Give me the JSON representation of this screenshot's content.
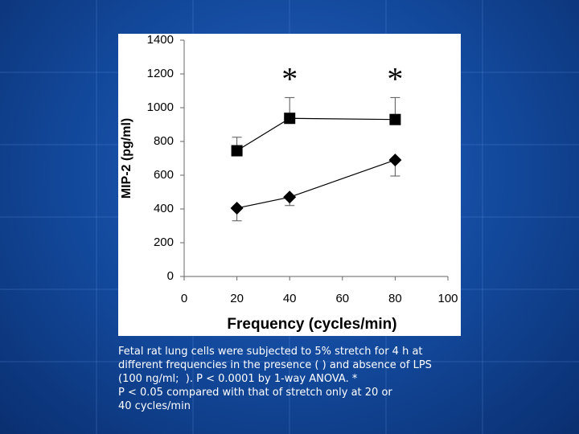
{
  "chart_data": {
    "type": "line",
    "xlabel": "Frequency (cycles/min)",
    "ylabel": "MIP-2 (pg/ml)",
    "x": [
      20,
      40,
      80
    ],
    "series": [
      {
        "color": "#000000",
        "marker": "square",
        "values": [
          745,
          937,
          930
        ],
        "errors": [
          80,
          123,
          130
        ],
        "error_direction": "up"
      },
      {
        "color": "#000000",
        "marker": "diamond",
        "values": [
          405,
          470,
          690
        ],
        "errors": [
          75,
          50,
          95
        ],
        "error_direction": "down"
      }
    ],
    "annotations": [
      {
        "text": "*",
        "x": 40,
        "y": 1150
      },
      {
        "text": "*",
        "x": 80,
        "y": 1150
      }
    ],
    "xlim": [
      0,
      100
    ],
    "xticks": [
      0,
      20,
      40,
      60,
      80,
      100
    ],
    "ylim": [
      0,
      1400
    ],
    "yticks": [
      0,
      200,
      400,
      600,
      800,
      1000,
      1200,
      1400
    ],
    "grid": false
  },
  "caption_lines": [
    "Fetal rat lung cells were subjected to 5% stretch for 4 h at",
    "different frequencies in the presence ( ) and absence of LPS",
    "(100 ng/ml;  ). P < 0.0001 by 1-way ANOVA. *",
    "P < 0.05 compared with that of stretch only at 20 or",
    "40 cycles/min"
  ]
}
